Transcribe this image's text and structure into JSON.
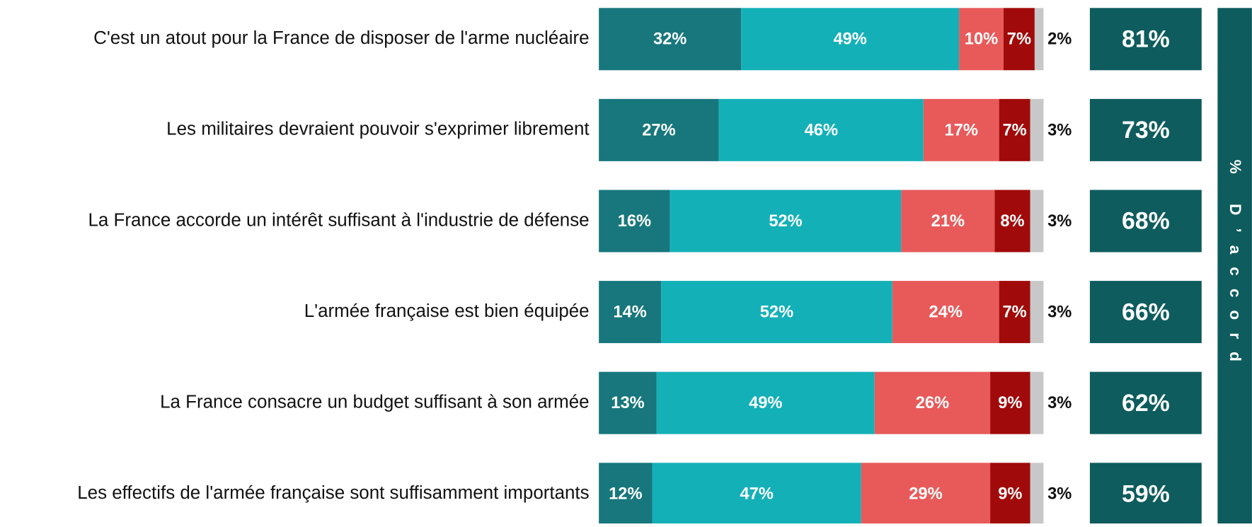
{
  "chart_data": {
    "type": "stacked_bar",
    "categories": [
      "C'est un atout pour la France de disposer de l'arme nucléaire",
      "Les militaires devraient pouvoir s'exprimer librement",
      "La France accorde un intérêt suffisant à l'industrie de défense",
      "L'armée française est bien équipée",
      "La France consacre un budget suffisant à son armée",
      "Les effectifs de l'armée française sont suffisamment importants"
    ],
    "xlim": [
      0,
      100
    ],
    "series": [
      {
        "color": "#17777c",
        "values": [
          32,
          27,
          16,
          14,
          13,
          12
        ],
        "value_labels": [
          "32%",
          "27%",
          "16%",
          "14%",
          "13%",
          "12%"
        ]
      },
      {
        "color": "#14b0b8",
        "values": [
          49,
          46,
          52,
          52,
          49,
          47
        ],
        "value_labels": [
          "49%",
          "46%",
          "52%",
          "52%",
          "49%",
          "47%"
        ]
      },
      {
        "color": "#e85a5a",
        "values": [
          10,
          17,
          21,
          24,
          26,
          29
        ],
        "value_labels": [
          "10%",
          "17%",
          "21%",
          "24%",
          "26%",
          "29%"
        ]
      },
      {
        "color": "#a10a0a",
        "values": [
          7,
          7,
          8,
          7,
          9,
          9
        ],
        "value_labels": [
          "7%",
          "7%",
          "8%",
          "7%",
          "9%",
          "9%"
        ]
      },
      {
        "color": "#c8c8c8",
        "values": [
          2,
          3,
          3,
          3,
          3,
          3
        ],
        "value_labels": [
          "2%",
          "3%",
          "3%",
          "3%",
          "3%",
          "3%"
        ]
      }
    ],
    "totals": {
      "label": "% D’accord",
      "color": "#0e5c5e",
      "values": [
        81,
        73,
        68,
        66,
        62,
        59
      ],
      "value_labels": [
        "81%",
        "73%",
        "68%",
        "66%",
        "62%",
        "59%"
      ]
    }
  }
}
